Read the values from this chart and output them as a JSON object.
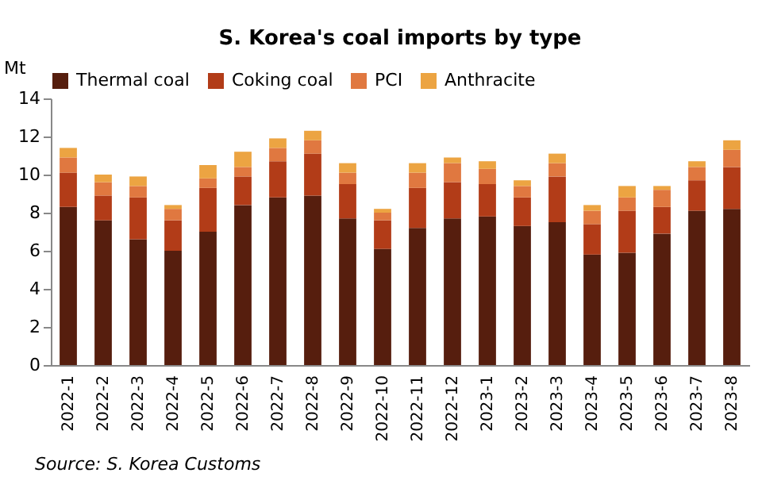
{
  "chart_data": {
    "type": "bar",
    "title": "S. Korea's coal imports by type",
    "ylabel": "Mt",
    "stacked": true,
    "categories": [
      "2022-1",
      "2022-2",
      "2022-3",
      "2022-4",
      "2022-5",
      "2022-6",
      "2022-7",
      "2022-8",
      "2022-9",
      "2022-10",
      "2022-11",
      "2022-12",
      "2023-1",
      "2023-2",
      "2023-3",
      "2023-4",
      "2023-5",
      "2023-6",
      "2023-7",
      "2023-8"
    ],
    "series": [
      {
        "name": "Thermal coal",
        "color": "#561e0e",
        "values": [
          8.3,
          7.6,
          6.6,
          6.0,
          7.0,
          8.4,
          8.8,
          8.9,
          7.7,
          6.1,
          7.2,
          7.7,
          7.8,
          7.3,
          7.5,
          5.8,
          5.9,
          6.9,
          8.1,
          8.2
        ]
      },
      {
        "name": "Coking coal",
        "color": "#b23c18",
        "values": [
          1.8,
          1.3,
          2.2,
          1.6,
          2.3,
          1.5,
          1.9,
          2.2,
          1.8,
          1.5,
          2.1,
          1.9,
          1.7,
          1.5,
          2.4,
          1.6,
          2.2,
          1.4,
          1.6,
          2.2
        ]
      },
      {
        "name": "PCI",
        "color": "#e07840",
        "values": [
          0.8,
          0.7,
          0.6,
          0.6,
          0.5,
          0.5,
          0.7,
          0.7,
          0.6,
          0.4,
          0.8,
          1.0,
          0.8,
          0.6,
          0.7,
          0.7,
          0.7,
          0.9,
          0.7,
          0.9
        ]
      },
      {
        "name": "Anthracite",
        "color": "#eca442",
        "values": [
          0.5,
          0.4,
          0.5,
          0.2,
          0.7,
          0.8,
          0.5,
          0.5,
          0.5,
          0.2,
          0.5,
          0.3,
          0.4,
          0.3,
          0.5,
          0.3,
          0.6,
          0.2,
          0.3,
          0.5
        ]
      }
    ],
    "ylim": [
      0,
      14
    ],
    "yticks": [
      0,
      2,
      4,
      6,
      8,
      10,
      12,
      14
    ],
    "legend": "top",
    "annotations": [
      "Source: S. Korea Customs"
    ]
  }
}
